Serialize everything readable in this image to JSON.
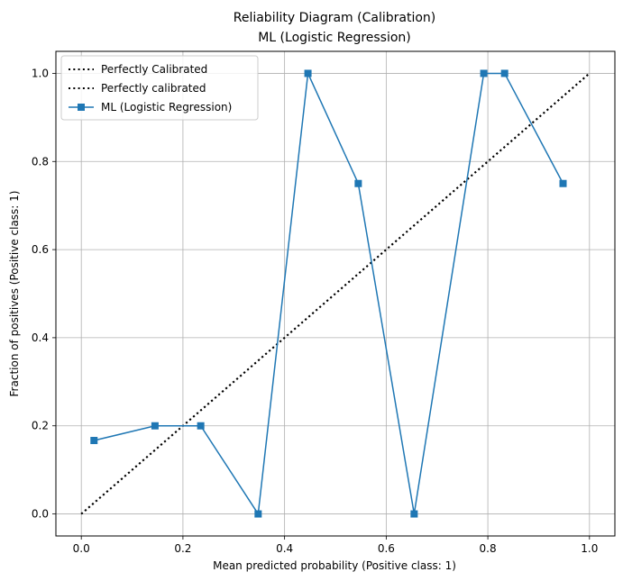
{
  "chart_data": {
    "type": "line",
    "title": "Reliability Diagram (Calibration)",
    "subtitle": "ML (Logistic Regression)",
    "xlabel": "Mean predicted probability (Positive class: 1)",
    "ylabel": "Fraction of positives (Positive class: 1)",
    "xlim": [
      -0.05,
      1.05
    ],
    "ylim": [
      -0.05,
      1.05
    ],
    "grid": true,
    "legend_position": "upper-left",
    "x_ticks": [
      0.0,
      0.2,
      0.4,
      0.6,
      0.8,
      1.0
    ],
    "y_ticks": [
      0.0,
      0.2,
      0.4,
      0.6,
      0.8,
      1.0
    ],
    "x_tick_labels": [
      "0.0",
      "0.2",
      "0.4",
      "0.6",
      "0.8",
      "1.0"
    ],
    "y_tick_labels": [
      "0.0",
      "0.2",
      "0.4",
      "0.6",
      "0.8",
      "1.0"
    ],
    "series": [
      {
        "name": "Perfectly Calibrated",
        "style": "dotted",
        "color": "#000000",
        "x": [
          0.0,
          1.0
        ],
        "y": [
          0.0,
          1.0
        ]
      },
      {
        "name": "Perfectly calibrated",
        "style": "dotted",
        "color": "#000000",
        "x": [
          0.0,
          1.0
        ],
        "y": [
          0.0,
          1.0
        ]
      },
      {
        "name": "ML (Logistic Regression)",
        "style": "solid",
        "marker": "square",
        "color": "#1f77b4",
        "x": [
          0.025,
          0.145,
          0.235,
          0.348,
          0.446,
          0.545,
          0.655,
          0.792,
          0.833,
          0.948
        ],
        "y": [
          0.1667,
          0.2,
          0.2,
          0.0,
          1.0,
          0.75,
          0.0,
          1.0,
          1.0,
          0.75
        ]
      }
    ]
  }
}
